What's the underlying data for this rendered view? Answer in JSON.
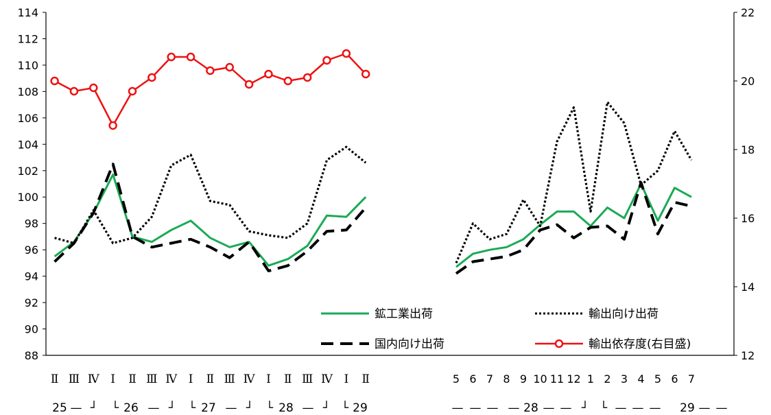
{
  "chart_data": {
    "type": "line",
    "title": "",
    "left_axis": {
      "min": 88,
      "max": 114,
      "step": 2,
      "ticks": [
        "88",
        "90",
        "92",
        "94",
        "96",
        "98",
        "100",
        "102",
        "104",
        "106",
        "108",
        "110",
        "112",
        "114"
      ]
    },
    "right_axis": {
      "min": 12,
      "max": 22,
      "step": 2,
      "ticks": [
        "12",
        "14",
        "16",
        "18",
        "20",
        "22"
      ]
    },
    "grid": false,
    "legend_position": "bottom-center inside plot",
    "panels": [
      {
        "name": "quarterly",
        "categories": [
          "Ⅱ",
          "Ⅲ",
          "Ⅳ",
          "Ⅰ",
          "Ⅱ",
          "Ⅲ",
          "Ⅳ",
          "Ⅰ",
          "Ⅱ",
          "Ⅲ",
          "Ⅳ",
          "Ⅰ",
          "Ⅱ",
          "Ⅲ",
          "Ⅳ",
          "Ⅰ",
          "Ⅱ"
        ],
        "period_labels": [
          "25",
          "26",
          "27",
          "28",
          "29"
        ],
        "connectors": [
          "—",
          "┘",
          "└",
          "—",
          "┘",
          "└",
          "—",
          "┘",
          "└",
          "—",
          "┘",
          "└"
        ]
      },
      {
        "name": "monthly",
        "categories": [
          "5",
          "6",
          "7",
          "8",
          "9",
          "10",
          "11",
          "12",
          "1",
          "2",
          "3",
          "4",
          "5",
          "6",
          "7"
        ],
        "period_labels": [
          "28",
          "29"
        ],
        "connectors": [
          "—",
          "—",
          "—",
          "—",
          "—",
          "—",
          "┘",
          "└",
          "—",
          "—",
          "—",
          "—",
          "—"
        ]
      }
    ],
    "series": [
      {
        "name": "鉱工業出荷",
        "axis": "left",
        "color": "#1aaa55",
        "style": "solid",
        "quarterly": [
          95.5,
          96.6,
          98.8,
          101.7,
          97.0,
          96.6,
          97.5,
          98.2,
          96.9,
          96.2,
          96.6,
          94.8,
          95.3,
          96.3,
          98.6,
          98.5,
          100.0
        ],
        "monthly": [
          94.7,
          95.7,
          96.0,
          96.2,
          96.8,
          97.9,
          98.9,
          98.9,
          97.8,
          99.2,
          98.4,
          101.0,
          98.2,
          100.7,
          100.0
        ]
      },
      {
        "name": "輸出向け出荷",
        "axis": "left",
        "color": "#000000",
        "style": "dotted",
        "quarterly": [
          96.9,
          96.5,
          99.0,
          96.5,
          96.9,
          98.5,
          102.4,
          103.2,
          99.7,
          99.4,
          97.4,
          97.1,
          96.9,
          98.0,
          102.8,
          103.8,
          102.6
        ],
        "monthly": [
          95.0,
          98.0,
          96.8,
          97.2,
          99.8,
          97.8,
          104.2,
          106.8,
          98.9,
          107.2,
          105.6,
          100.9,
          102.0,
          105.0,
          102.8
        ]
      },
      {
        "name": "国内向け出荷",
        "axis": "left",
        "color": "#000000",
        "style": "dashed",
        "quarterly": [
          95.1,
          96.5,
          98.8,
          102.5,
          97.0,
          96.2,
          96.5,
          96.8,
          96.2,
          95.4,
          96.6,
          94.4,
          94.8,
          95.9,
          97.4,
          97.5,
          99.2
        ],
        "monthly": [
          94.2,
          95.1,
          95.3,
          95.5,
          96.0,
          97.5,
          97.9,
          96.9,
          97.7,
          97.8,
          96.8,
          101.1,
          97.2,
          99.6,
          99.3
        ]
      },
      {
        "name": "輸出依存度(右目盛)",
        "axis": "right",
        "color": "#ee1111",
        "style": "solid-circle",
        "quarterly": [
          20.0,
          19.7,
          19.8,
          18.7,
          19.7,
          20.1,
          20.7,
          20.7,
          20.3,
          20.4,
          19.9,
          20.2,
          20.0,
          20.1,
          20.6,
          20.8,
          20.2
        ],
        "monthly": []
      }
    ]
  }
}
